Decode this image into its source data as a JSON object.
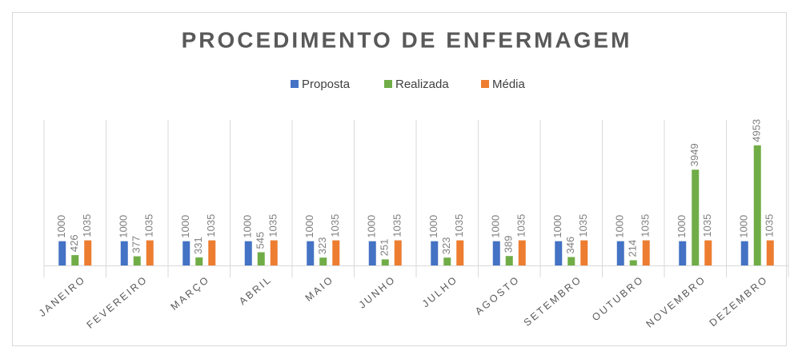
{
  "chart_data": {
    "type": "bar",
    "title": "PROCEDIMENTO DE ENFERMAGEM",
    "categories": [
      "JANEIRO",
      "FEVEREIRO",
      "MARÇO",
      "ABRIL",
      "MAIO",
      "JUNHO",
      "JULHO",
      "AGOSTO",
      "SETEMBRO",
      "OUTUBRO",
      "NOVEMBRO",
      "DEZEMBRO"
    ],
    "series": [
      {
        "name": "Proposta",
        "color": "#4472c4",
        "values": [
          1000,
          1000,
          1000,
          1000,
          1000,
          1000,
          1000,
          1000,
          1000,
          1000,
          1000,
          1000
        ]
      },
      {
        "name": "Realizada",
        "color": "#70ad47",
        "values": [
          426,
          377,
          331,
          545,
          323,
          251,
          323,
          389,
          346,
          214,
          3949,
          4953
        ]
      },
      {
        "name": "Média",
        "color": "#ed7d31",
        "values": [
          1035,
          1035,
          1035,
          1035,
          1035,
          1035,
          1035,
          1035,
          1035,
          1035,
          1035,
          1035
        ]
      }
    ],
    "ylim": [
      0,
      6000
    ],
    "grid": true,
    "legend": "top"
  }
}
